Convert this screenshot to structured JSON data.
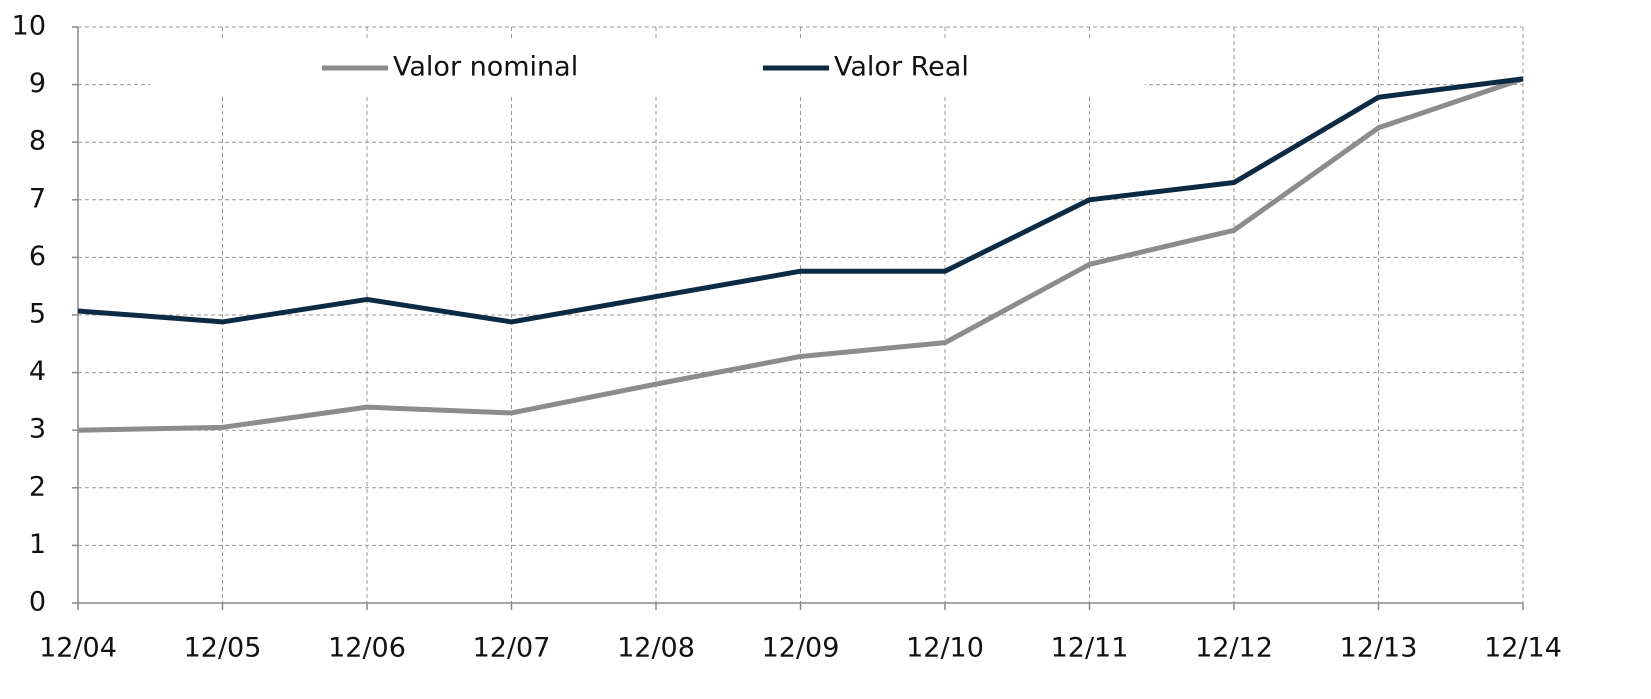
{
  "chart_data": {
    "type": "line",
    "categories": [
      "12/04",
      "12/05",
      "12/06",
      "12/07",
      "12/08",
      "12/09",
      "12/10",
      "12/11",
      "12/12",
      "12/13",
      "12/14"
    ],
    "series": [
      {
        "name": "Valor nominal",
        "color": "#8c8c8c",
        "values": [
          3.0,
          3.05,
          3.4,
          3.3,
          3.8,
          4.28,
          4.52,
          5.88,
          6.47,
          8.25,
          9.1
        ]
      },
      {
        "name": "Valor Real",
        "color": "#0d2a44",
        "values": [
          5.07,
          4.88,
          5.27,
          4.88,
          5.32,
          5.76,
          5.76,
          7.0,
          7.3,
          8.78,
          9.1
        ]
      }
    ],
    "ylim": [
      0,
      10
    ],
    "yticks": [
      0,
      1,
      2,
      3,
      4,
      5,
      6,
      7,
      8,
      9,
      10
    ],
    "grid": true,
    "legend": "top"
  }
}
